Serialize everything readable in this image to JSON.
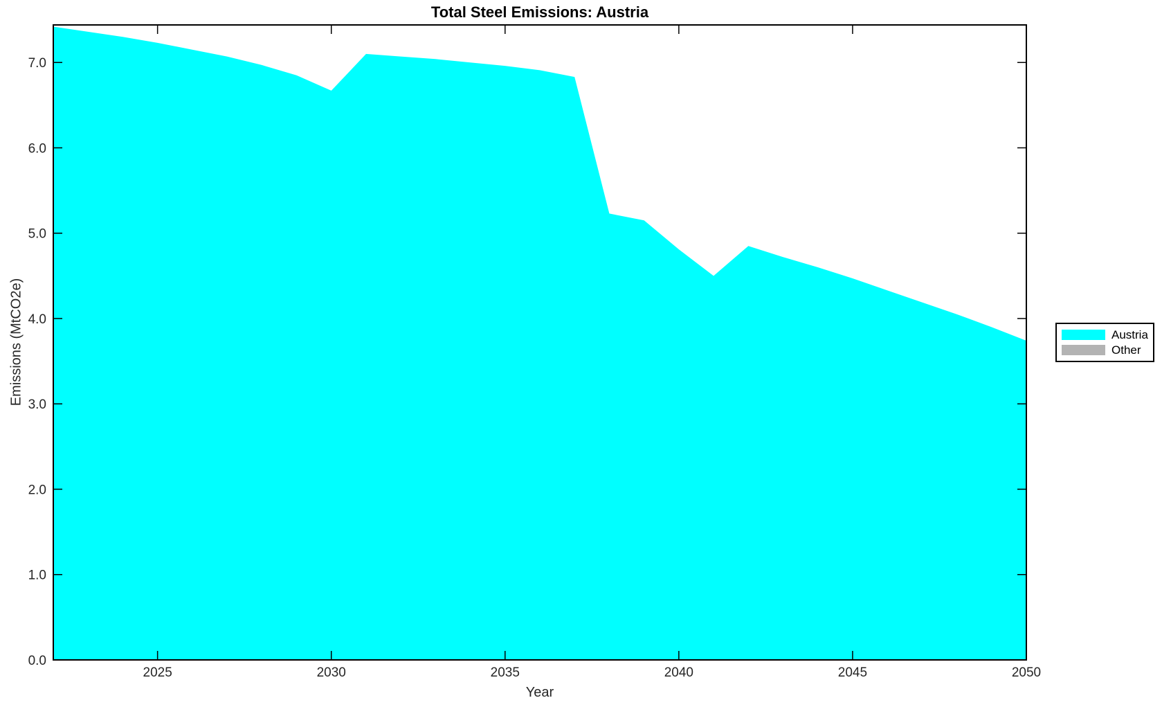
{
  "page": {
    "background": "#FFFFFF"
  },
  "colors": {
    "area": "#00FFFF",
    "other": "#B3B3B3",
    "box": "#000000",
    "axis_text": "#262626"
  },
  "chart_data": {
    "type": "area",
    "title": "Total Steel Emissions: Austria",
    "xlabel": "Year",
    "ylabel": "Emissions (MtCO2e)",
    "x_range": [
      2022,
      2050
    ],
    "y_range": [
      0,
      7.44
    ],
    "grid": false,
    "legend_position": "outside-right",
    "xticks": {
      "values": [
        2025,
        2030,
        2035,
        2040,
        2045,
        2050
      ],
      "labels": [
        "2025",
        "2030",
        "2035",
        "2040",
        "2045",
        "2050"
      ]
    },
    "yticks": {
      "values": [
        0,
        1,
        2,
        3,
        4,
        5,
        6,
        7
      ],
      "labels": [
        "0.0",
        "1.0",
        "2.0",
        "3.0",
        "4.0",
        "5.0",
        "6.0",
        "7.0"
      ]
    },
    "series": [
      {
        "name": "Austria",
        "color": "#00FFFF",
        "x": [
          2022,
          2023,
          2024,
          2025,
          2026,
          2027,
          2028,
          2029,
          2030,
          2031,
          2032,
          2033,
          2034,
          2035,
          2036,
          2037,
          2038,
          2039,
          2040,
          2041,
          2042,
          2043,
          2044,
          2045,
          2046,
          2047,
          2048,
          2049,
          2050
        ],
        "values": [
          7.42,
          7.36,
          7.3,
          7.23,
          7.15,
          7.07,
          6.97,
          6.85,
          6.67,
          7.1,
          7.07,
          7.04,
          7.0,
          6.96,
          6.91,
          6.83,
          5.23,
          5.15,
          4.81,
          4.5,
          4.85,
          4.72,
          4.6,
          4.47,
          4.33,
          4.19,
          4.05,
          3.9,
          3.74
        ]
      },
      {
        "name": "Other",
        "color": "#B3B3B3",
        "x": [],
        "values": []
      }
    ]
  },
  "legend": {
    "entries": [
      {
        "label": "Austria",
        "color": "#00FFFF"
      },
      {
        "label": "Other",
        "color": "#B3B3B3"
      }
    ]
  }
}
